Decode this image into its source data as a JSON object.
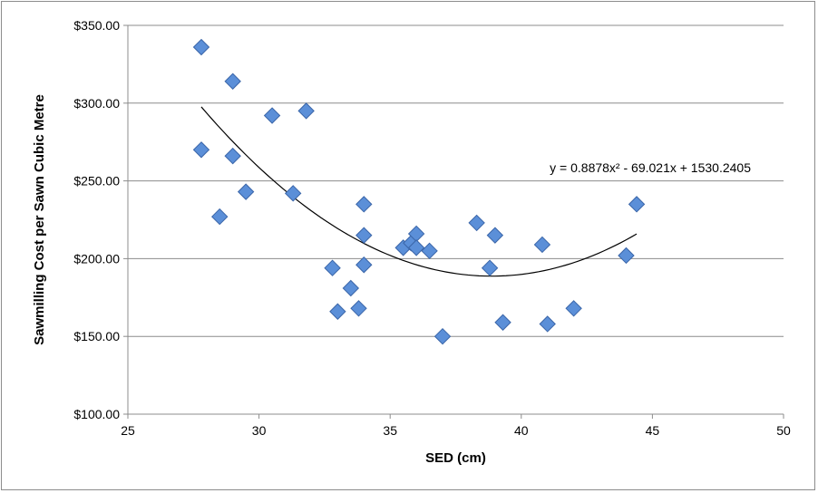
{
  "chart_data": {
    "type": "scatter",
    "title": "",
    "xlabel": "SED (cm)",
    "ylabel": "Sawmilling Cost per Sawn Cubic Metre",
    "xlim": [
      25,
      50
    ],
    "ylim": [
      100,
      350
    ],
    "x_ticks": [
      "25",
      "30",
      "35",
      "40",
      "45",
      "50"
    ],
    "y_ticks": [
      "$100.00",
      "$150.00",
      "$200.00",
      "$250.00",
      "$300.00",
      "$350.00"
    ],
    "grid": "horizontal",
    "legend": "none",
    "marker_color": "#5b8fd8",
    "marker_edge": "#3a65a8",
    "points": [
      {
        "x": 27.8,
        "y": 336
      },
      {
        "x": 27.8,
        "y": 270
      },
      {
        "x": 28.5,
        "y": 227
      },
      {
        "x": 29.0,
        "y": 314
      },
      {
        "x": 29.0,
        "y": 266
      },
      {
        "x": 29.5,
        "y": 243
      },
      {
        "x": 30.5,
        "y": 292
      },
      {
        "x": 31.3,
        "y": 242
      },
      {
        "x": 31.8,
        "y": 295
      },
      {
        "x": 32.8,
        "y": 194
      },
      {
        "x": 33.0,
        "y": 166
      },
      {
        "x": 33.5,
        "y": 181
      },
      {
        "x": 33.8,
        "y": 168
      },
      {
        "x": 34.0,
        "y": 235
      },
      {
        "x": 34.0,
        "y": 215
      },
      {
        "x": 34.0,
        "y": 196
      },
      {
        "x": 35.5,
        "y": 207
      },
      {
        "x": 35.8,
        "y": 210
      },
      {
        "x": 36.0,
        "y": 216
      },
      {
        "x": 36.0,
        "y": 207
      },
      {
        "x": 36.5,
        "y": 205
      },
      {
        "x": 37.0,
        "y": 150
      },
      {
        "x": 38.3,
        "y": 223
      },
      {
        "x": 38.8,
        "y": 194
      },
      {
        "x": 39.0,
        "y": 215
      },
      {
        "x": 39.3,
        "y": 159
      },
      {
        "x": 40.8,
        "y": 209
      },
      {
        "x": 41.0,
        "y": 158
      },
      {
        "x": 42.0,
        "y": 168
      },
      {
        "x": 44.0,
        "y": 202
      },
      {
        "x": 44.4,
        "y": 235
      }
    ],
    "trendline": {
      "type": "polynomial",
      "coefficients": [
        0.8878,
        -69.021,
        1530.2405
      ],
      "x_range": [
        27.8,
        44.4
      ],
      "equation_label": "y = 0.8878x² - 69.021x + 1530.2405"
    }
  }
}
